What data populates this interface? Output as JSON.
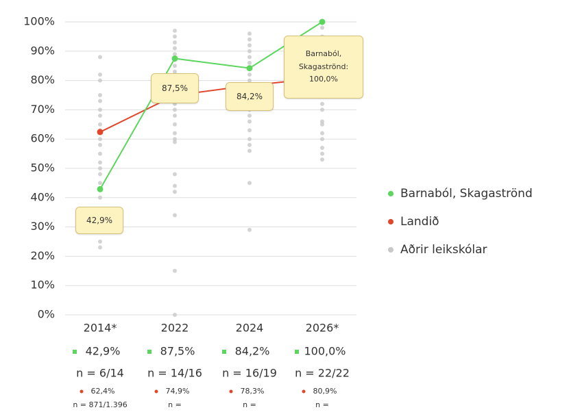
{
  "chart_data": {
    "type": "line",
    "categories": [
      "2014*",
      "2022",
      "2024",
      "2026*"
    ],
    "ylim": [
      0,
      100
    ],
    "yticks": [
      {
        "value": 0,
        "label": "0%"
      },
      {
        "value": 10,
        "label": "10%"
      },
      {
        "value": 20,
        "label": "20%"
      },
      {
        "value": 30,
        "label": "30%"
      },
      {
        "value": 40,
        "label": "40%"
      },
      {
        "value": 50,
        "label": "50%"
      },
      {
        "value": 60,
        "label": "60%"
      },
      {
        "value": 70,
        "label": "70%"
      },
      {
        "value": 80,
        "label": "80%"
      },
      {
        "value": 90,
        "label": "90%"
      },
      {
        "value": 100,
        "label": "100%"
      }
    ],
    "grid": true,
    "legend": "right",
    "series": [
      {
        "name": "Barnaból, Skagaströnd",
        "color": "#5cd65c",
        "values": [
          42.9,
          87.5,
          84.2,
          100
        ],
        "value_labels": [
          "42,9%",
          "87,5%",
          "84,2%",
          "100,0%"
        ],
        "n_labels": [
          "n = 6/14",
          "n = 14/16",
          "n = 16/19",
          "n = 22/22"
        ]
      },
      {
        "name": "Landið",
        "color": "#e0472a",
        "values": [
          62.4,
          74.9,
          78.3,
          80.9
        ],
        "value_labels": [
          "62,4%",
          "74,9%",
          "78,3%",
          "80,9%"
        ],
        "n_labels": [
          "n = 871/1.396",
          "n =",
          "n =",
          "n ="
        ]
      },
      {
        "name": "Aðrir leikskólar",
        "color": "#c8c8c8",
        "values": [
          [
            88,
            82,
            80,
            75,
            73,
            70,
            68,
            65,
            63,
            60,
            58,
            55,
            52,
            50,
            48,
            45,
            40,
            25,
            23
          ],
          [
            97,
            95,
            93,
            91,
            89,
            87,
            85,
            83,
            80,
            78,
            76,
            74,
            72,
            70,
            68,
            65,
            62,
            60,
            59,
            48,
            44,
            42,
            34,
            15,
            0
          ],
          [
            96,
            94,
            92,
            90,
            88,
            86,
            84,
            82,
            80,
            78,
            76,
            74,
            72,
            70,
            68,
            66,
            63,
            60,
            58,
            56,
            45,
            29
          ],
          [
            98,
            95,
            92,
            90,
            88,
            85,
            83,
            80,
            78,
            75,
            72,
            70,
            66,
            65,
            62,
            60,
            57,
            55,
            53
          ]
        ]
      }
    ],
    "callouts": [
      "42,9%",
      "87,5%",
      "84,2%",
      "Barnaból, Skagaströnd: 100,0%"
    ]
  }
}
